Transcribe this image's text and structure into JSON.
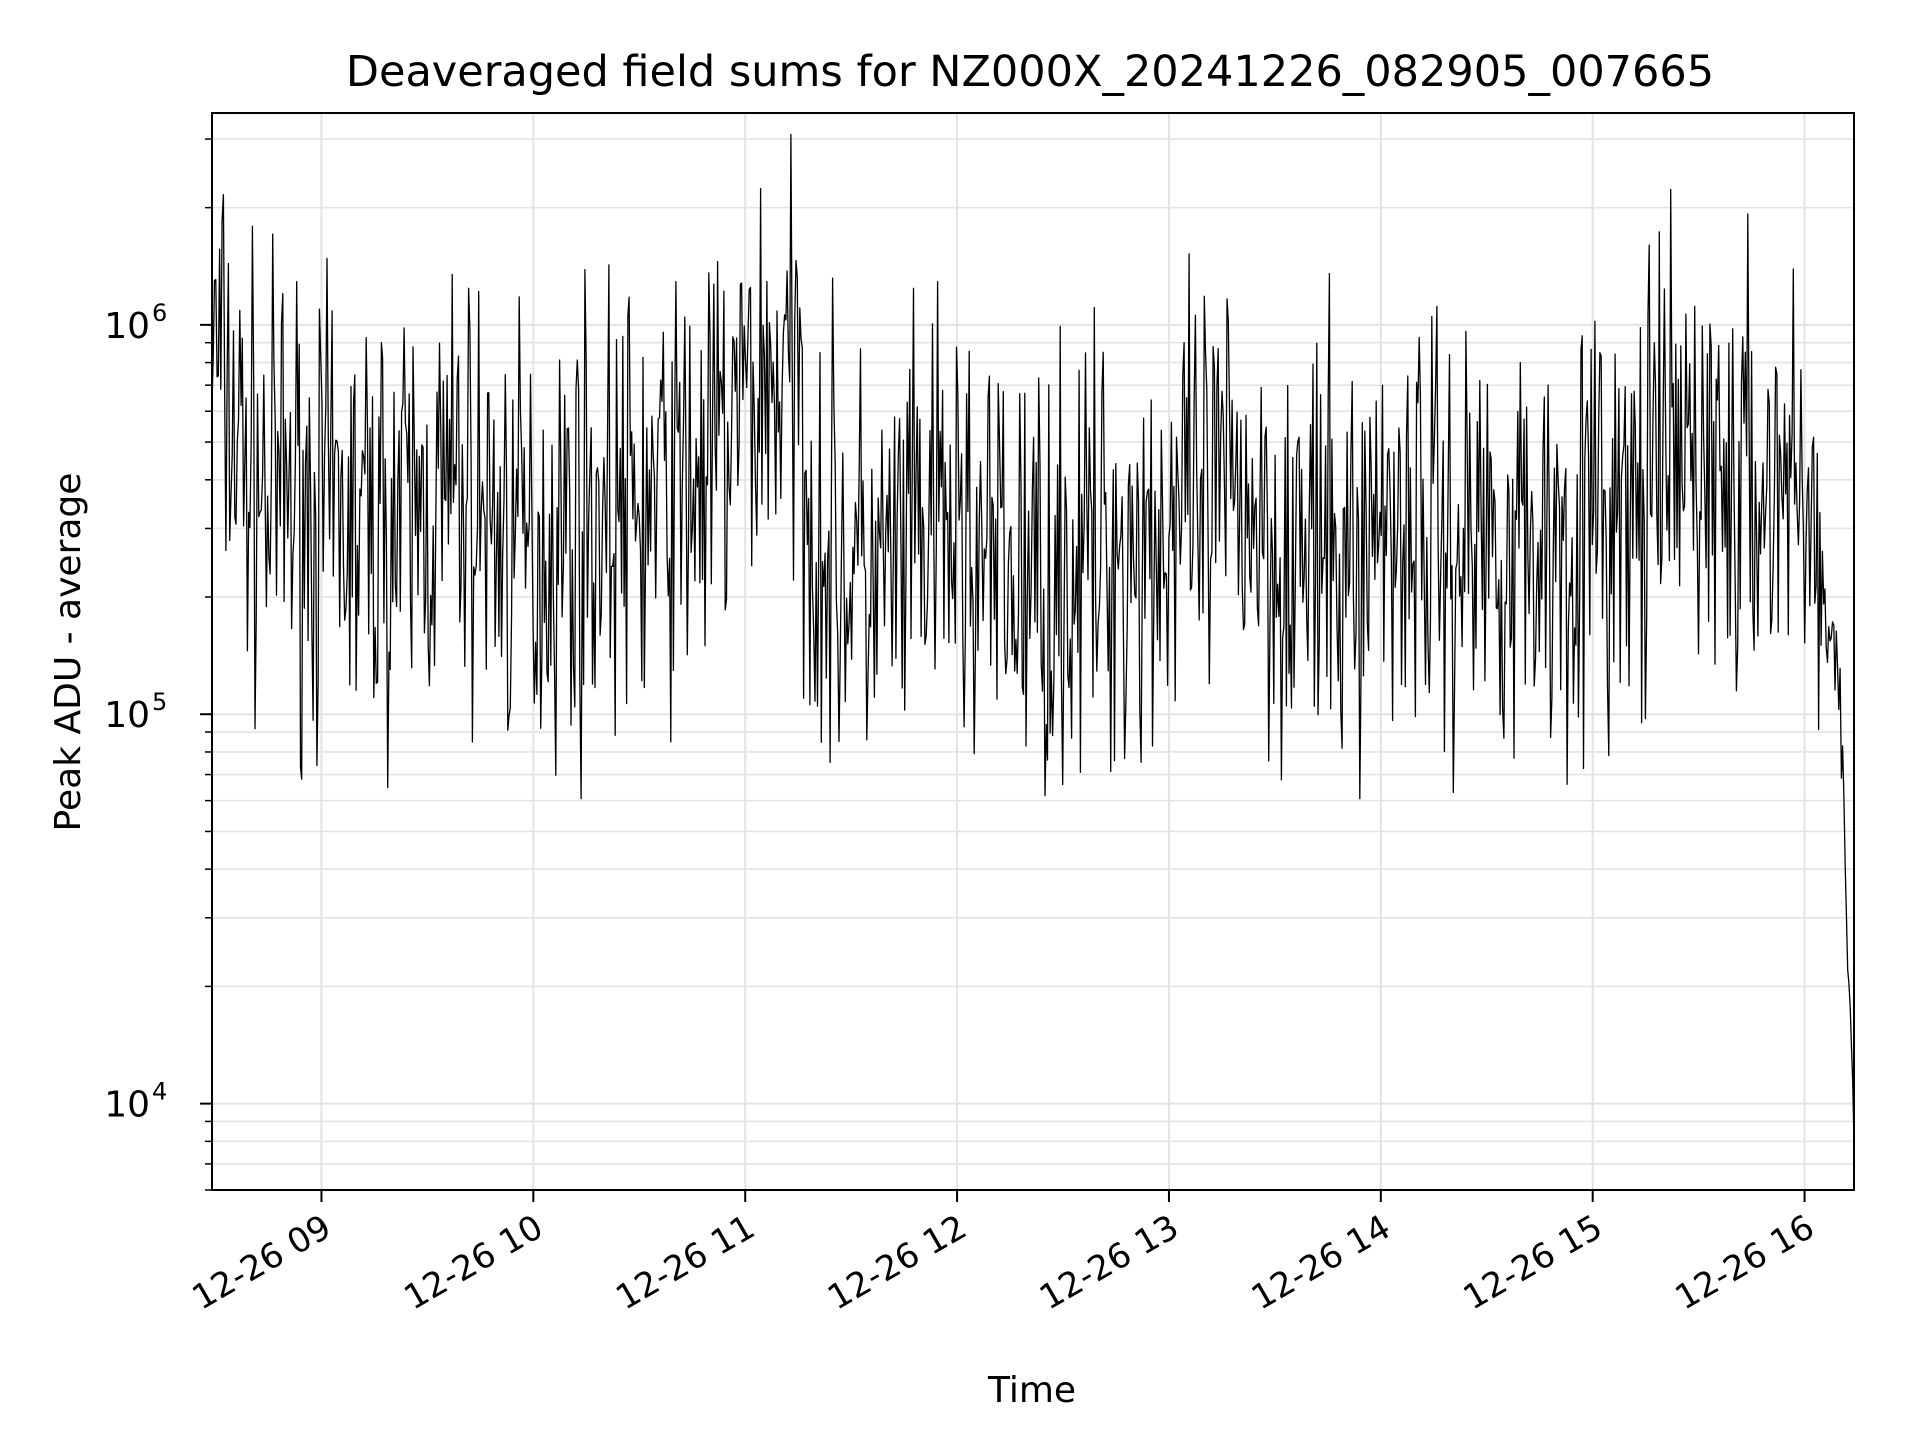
{
  "chart_data": {
    "type": "line",
    "title": "Deaveraged field sums for NZ000X_20241226_082905_007665",
    "xlabel": "Time",
    "ylabel": "Peak ADU - average",
    "y_scale": "log",
    "ylim": [
      6000,
      3500000
    ],
    "xlim": [
      "2024-12-26 08:29",
      "2024-12-26 16:14"
    ],
    "x_ticks": [
      "12-26 09",
      "12-26 10",
      "12-26 11",
      "12-26 12",
      "12-26 13",
      "12-26 14",
      "12-26 15",
      "12-26 16"
    ],
    "x_tick_times": [
      "2024-12-26 09:00",
      "2024-12-26 10:00",
      "2024-12-26 11:00",
      "2024-12-26 12:00",
      "2024-12-26 13:00",
      "2024-12-26 14:00",
      "2024-12-26 15:00",
      "2024-12-26 16:00"
    ],
    "y_ticks": [
      {
        "base": "10",
        "exp": "4",
        "value": 10000
      },
      {
        "base": "10",
        "exp": "5",
        "value": 100000
      },
      {
        "base": "10",
        "exp": "6",
        "value": 1000000
      }
    ],
    "grid": true,
    "line_color": "#000000",
    "series": [
      {
        "x": [
          "2024-12-26 08:29",
          "2024-12-26 08:33",
          "2024-12-26 08:38",
          "2024-12-26 08:45",
          "2024-12-26 08:50",
          "2024-12-26 09:00",
          "2024-12-26 09:10",
          "2024-12-26 09:20",
          "2024-12-26 09:30",
          "2024-12-26 09:40",
          "2024-12-26 09:50",
          "2024-12-26 10:00",
          "2024-12-26 10:10",
          "2024-12-26 10:20",
          "2024-12-26 10:30",
          "2024-12-26 10:40",
          "2024-12-26 10:50",
          "2024-12-26 11:00",
          "2024-12-26 11:10",
          "2024-12-26 11:15",
          "2024-12-26 11:20",
          "2024-12-26 11:30",
          "2024-12-26 11:40",
          "2024-12-26 11:50",
          "2024-12-26 12:00",
          "2024-12-26 12:10",
          "2024-12-26 12:20",
          "2024-12-26 12:30",
          "2024-12-26 12:40",
          "2024-12-26 12:50",
          "2024-12-26 13:00",
          "2024-12-26 13:10",
          "2024-12-26 13:20",
          "2024-12-26 13:30",
          "2024-12-26 13:40",
          "2024-12-26 13:50",
          "2024-12-26 14:00",
          "2024-12-26 14:10",
          "2024-12-26 14:20",
          "2024-12-26 14:30",
          "2024-12-26 14:40",
          "2024-12-26 14:50",
          "2024-12-26 15:00",
          "2024-12-26 15:10",
          "2024-12-26 15:20",
          "2024-12-26 15:30",
          "2024-12-26 15:40",
          "2024-12-26 15:50",
          "2024-12-26 16:00",
          "2024-12-26 16:05",
          "2024-12-26 16:10",
          "2024-12-26 16:14"
        ],
        "values": [
          900000,
          650000,
          450000,
          350000,
          380000,
          320000,
          300000,
          310000,
          330000,
          380000,
          300000,
          260000,
          300000,
          330000,
          330000,
          380000,
          420000,
          650000,
          750000,
          650000,
          280000,
          230000,
          220000,
          280000,
          300000,
          230000,
          220000,
          230000,
          260000,
          270000,
          300000,
          310000,
          400000,
          280000,
          250000,
          230000,
          320000,
          330000,
          270000,
          300000,
          270000,
          280000,
          320000,
          300000,
          420000,
          480000,
          360000,
          380000,
          420000,
          190000,
          110000,
          8000
        ]
      }
    ]
  }
}
